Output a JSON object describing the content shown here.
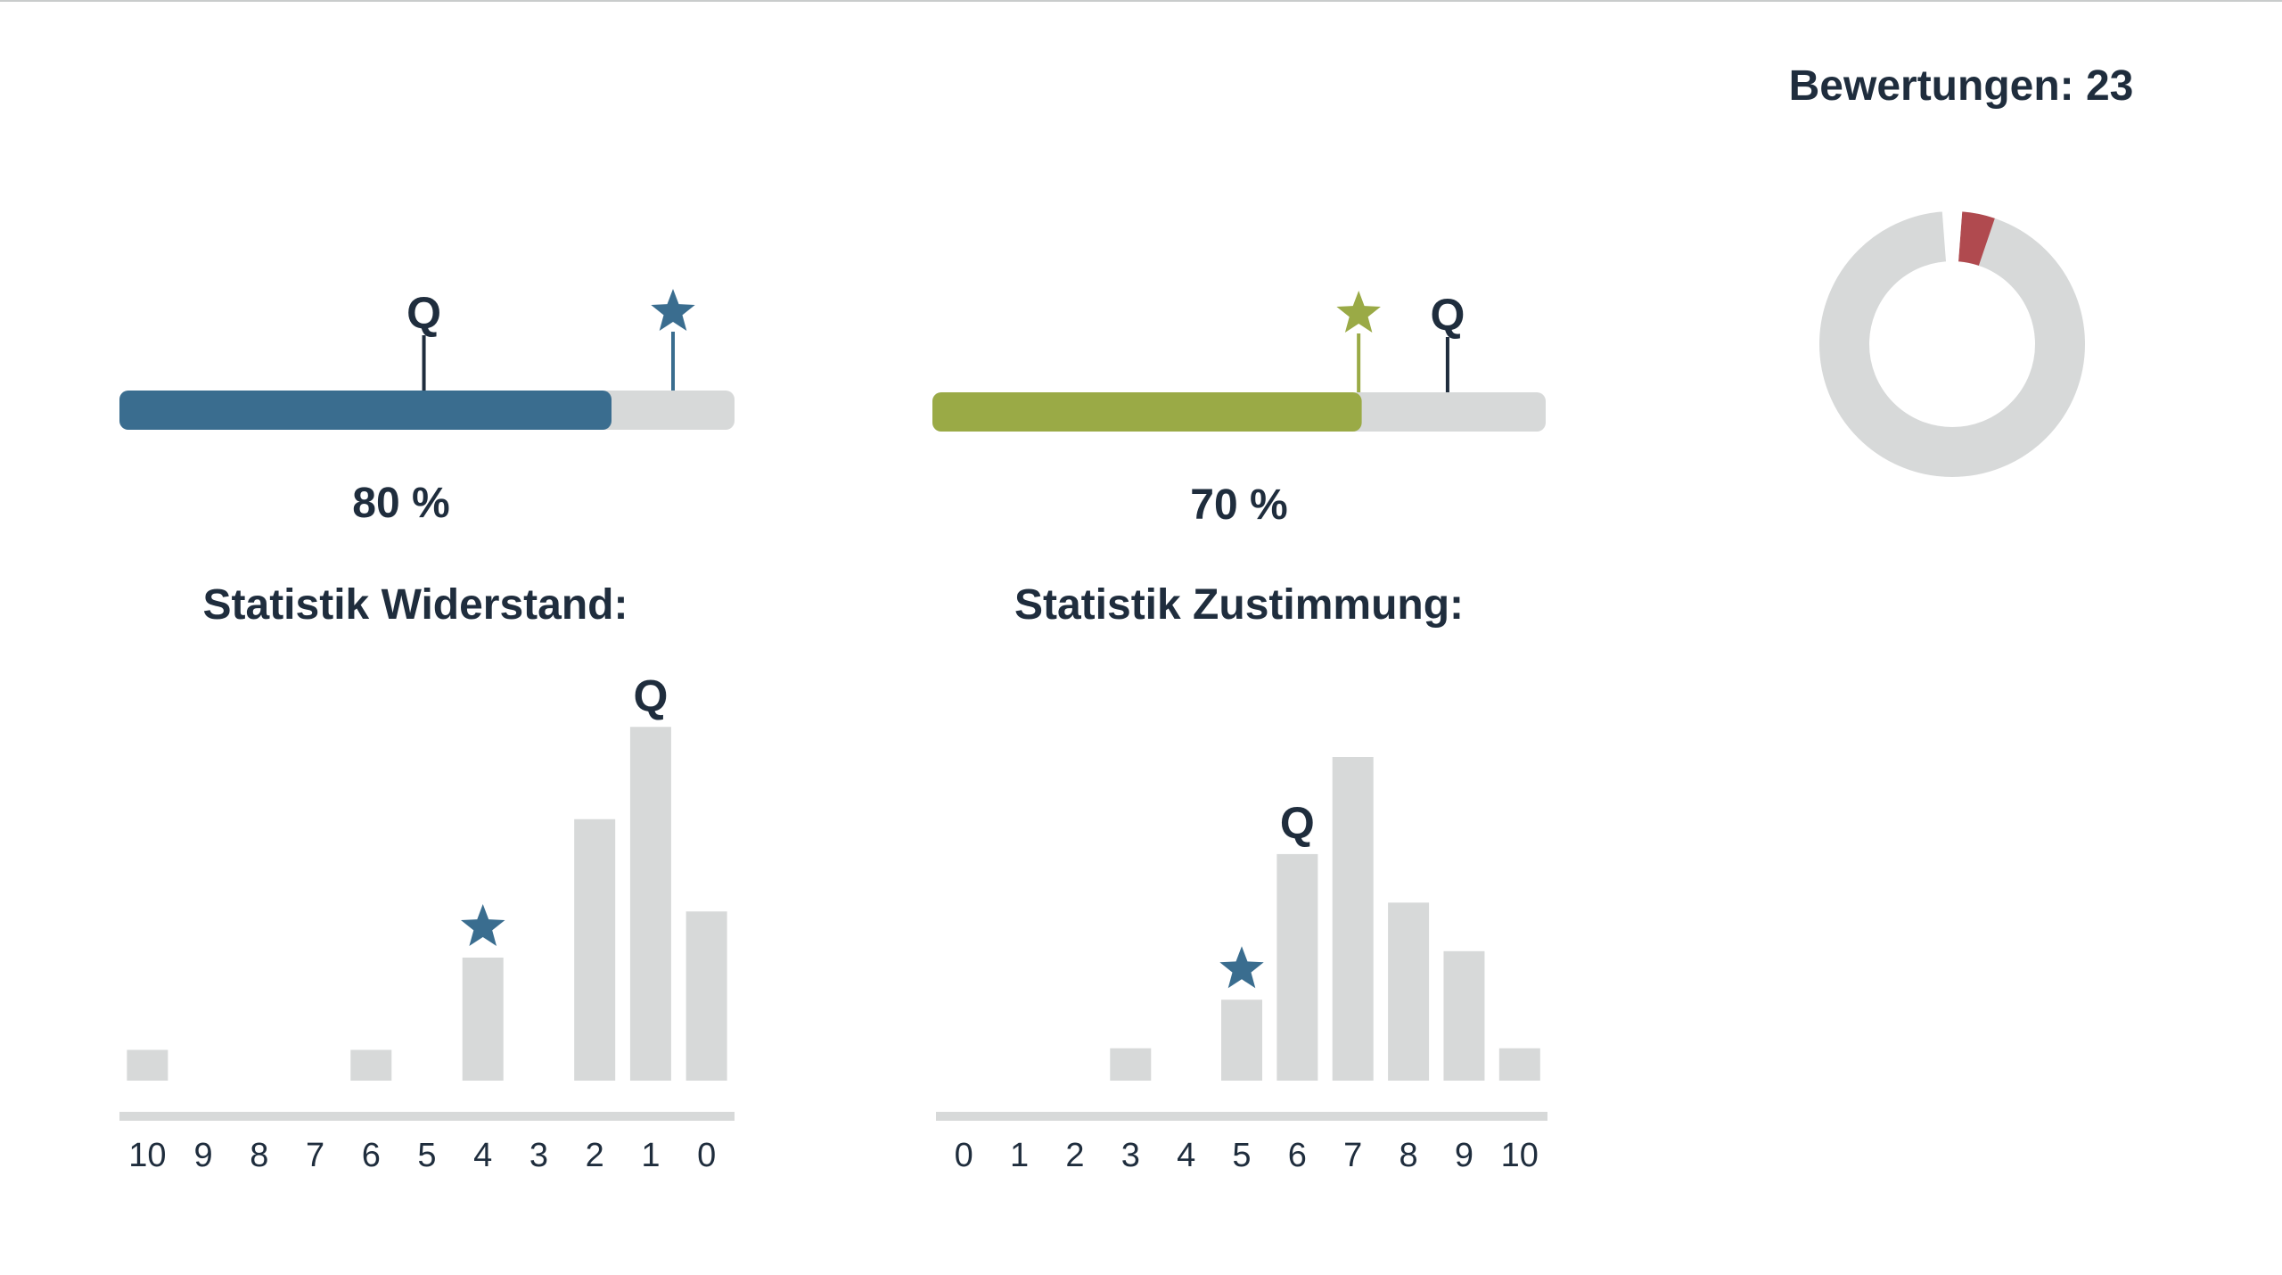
{
  "rating_count": {
    "label": "Bewertungen: 23",
    "donut_share": 0.04,
    "highlight_color": "#b04a4f",
    "track_color": "#d7d9d9"
  },
  "progress_bars": [
    {
      "id": "widerstand",
      "value_percent": 80,
      "value_label": "80 %",
      "fill_color": "#3a6d8f",
      "q_marker_fraction": 0.495,
      "star_marker_fraction": 0.9,
      "star_color": "#3a6d8f",
      "q_label": "Q"
    },
    {
      "id": "zustimmung",
      "value_percent": 70,
      "value_label": "70 %",
      "fill_color": "#9aaa46",
      "q_marker_fraction": 0.84,
      "star_marker_fraction": 0.695,
      "star_color": "#9aaa46",
      "q_label": "Q"
    }
  ],
  "chart_data": [
    {
      "type": "bar",
      "title": "Statistik Widerstand:",
      "categories": [
        "10",
        "9",
        "8",
        "7",
        "6",
        "5",
        "4",
        "3",
        "2",
        "1",
        "0"
      ],
      "values": [
        1,
        0,
        0,
        0,
        1,
        0,
        4,
        0,
        8.5,
        11.5,
        5.5
      ],
      "bar_color": "#d7d9d9",
      "q_marker_category": "1",
      "star_marker_category": "4",
      "star_color": "#3a6d8f",
      "q_label": "Q"
    },
    {
      "type": "bar",
      "title": "Statistik Zustimmung:",
      "categories": [
        "0",
        "1",
        "2",
        "3",
        "4",
        "5",
        "6",
        "7",
        "8",
        "9",
        "10"
      ],
      "values": [
        0,
        0,
        0,
        1,
        0,
        2.5,
        7,
        10,
        5.5,
        4,
        1
      ],
      "bar_color": "#d7d9d9",
      "q_marker_category": "6",
      "star_marker_category": "5",
      "star_color": "#3a6d8f",
      "q_label": "Q"
    }
  ]
}
